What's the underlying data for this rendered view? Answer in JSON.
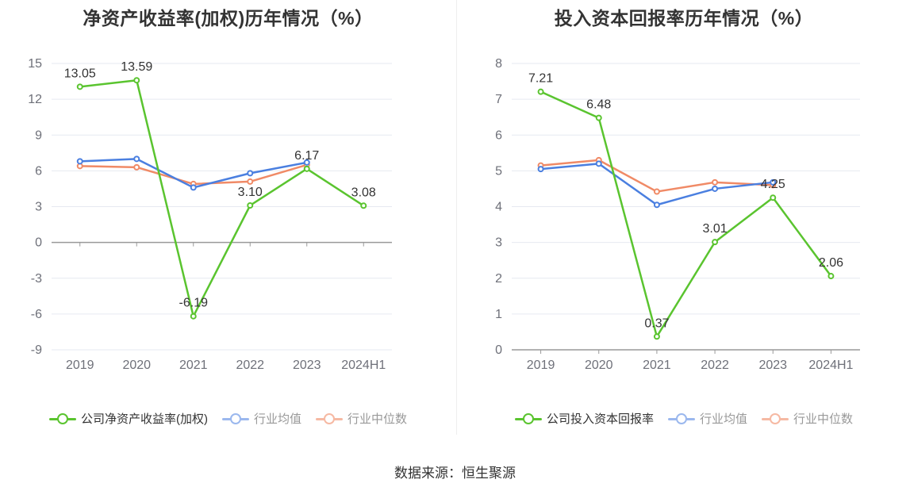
{
  "source": "数据来源：恒生聚源",
  "colors": {
    "company": "#5ac42f",
    "avg": "#4a7fe0",
    "median": "#f08a66",
    "axis": "#999999",
    "grid": "#e6e9f0"
  },
  "legend_left": [
    "公司净资产收益率(加权)",
    "行业均值",
    "行业中位数"
  ],
  "legend_right": [
    "公司投入资本回报率",
    "行业均值",
    "行业中位数"
  ],
  "chart_data": [
    {
      "type": "line",
      "title": "净资产收益率(加权)历年情况（%）",
      "categories": [
        "2019",
        "2020",
        "2021",
        "2022",
        "2023",
        "2024H1"
      ],
      "ylim": [
        -9,
        15
      ],
      "yticks": [
        -9,
        -6,
        -3,
        0,
        3,
        6,
        9,
        12,
        15
      ],
      "grid": true,
      "legend_position": "bottom",
      "series": [
        {
          "name": "公司净资产收益率(加权)",
          "values": [
            13.05,
            13.59,
            -6.19,
            3.1,
            6.17,
            3.08
          ],
          "labels": [
            "13.05",
            "13.59",
            "-6.19",
            "3.10",
            "6.17",
            "3.08"
          ]
        },
        {
          "name": "行业均值",
          "values": [
            6.8,
            7.0,
            4.6,
            5.8,
            6.7,
            null
          ]
        },
        {
          "name": "行业中位数",
          "values": [
            6.4,
            6.3,
            4.9,
            5.1,
            6.5,
            null
          ]
        }
      ]
    },
    {
      "type": "line",
      "title": "投入资本回报率历年情况（%）",
      "categories": [
        "2019",
        "2020",
        "2021",
        "2022",
        "2023",
        "2024H1"
      ],
      "ylim": [
        0,
        8
      ],
      "yticks": [
        0,
        1,
        2,
        3,
        4,
        5,
        6,
        7,
        8
      ],
      "grid": true,
      "legend_position": "bottom",
      "series": [
        {
          "name": "公司投入资本回报率",
          "values": [
            7.21,
            6.48,
            0.37,
            3.01,
            4.25,
            2.06
          ],
          "labels": [
            "7.21",
            "6.48",
            "0.37",
            "3.01",
            "4.25",
            "2.06"
          ]
        },
        {
          "name": "行业均值",
          "values": [
            5.05,
            5.2,
            4.05,
            4.5,
            4.68,
            null
          ]
        },
        {
          "name": "行业中位数",
          "values": [
            5.15,
            5.3,
            4.42,
            4.68,
            4.6,
            null
          ]
        }
      ]
    }
  ]
}
